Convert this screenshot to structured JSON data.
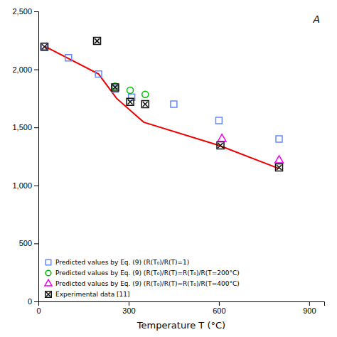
{
  "chart_data": {
    "type": "scatter",
    "xlabel": "Temperature T (°C)",
    "annotations": [
      "A"
    ],
    "xlim": [
      0,
      950
    ],
    "ylim": [
      0,
      2500
    ],
    "xticks": [
      0,
      300,
      600,
      900
    ],
    "yticks": [
      0,
      500,
      {
        "value": 1000,
        "label": "1,000"
      },
      {
        "value": 1500,
        "label": "1,500"
      },
      {
        "value": 2000,
        "label": "2,000"
      },
      {
        "value": 2500,
        "label": "2,500"
      }
    ],
    "grid": false,
    "legend": "lower left",
    "series": [
      {
        "type": "line",
        "color": "#ee0000",
        "line_style": "solid",
        "x": [
          20,
          200,
          260,
          350,
          600,
          800
        ],
        "values": [
          2200,
          1960,
          1750,
          1545,
          1345,
          1145
        ]
      },
      {
        "type": "scatter",
        "name": "Predicted values by Eq. (9) (R(T₀)/R(T)=1)",
        "color": "#6688ff",
        "marker": "square",
        "x": [
          20,
          100,
          200,
          255,
          310,
          450,
          600,
          800
        ],
        "values": [
          2200,
          2100,
          1960,
          1830,
          1760,
          1700,
          1560,
          1400
        ]
      },
      {
        "type": "scatter",
        "name": "Predicted values by Eq. (9) (R(T₀)/R(T)=R(T₀)/R(T=200°C)",
        "color": "#00bb00",
        "marker": "circle",
        "x": [
          255,
          305,
          355
        ],
        "values": [
          1855,
          1820,
          1785
        ]
      },
      {
        "type": "scatter",
        "name": "Predicted values by Eq. (9) (R(T₀)/R(T)=R(T₀)/R(T=400°C)",
        "color": "#ee00ee",
        "marker": "triangle",
        "x": [
          610,
          800
        ],
        "values": [
          1400,
          1215
        ]
      },
      {
        "type": "scatter",
        "name": "Experimental data [11]",
        "color": "#111111",
        "marker": "x-square",
        "x": [
          20,
          195,
          255,
          305,
          355,
          605,
          800
        ],
        "values": [
          2195,
          2245,
          1845,
          1720,
          1700,
          1345,
          1155
        ]
      }
    ]
  }
}
